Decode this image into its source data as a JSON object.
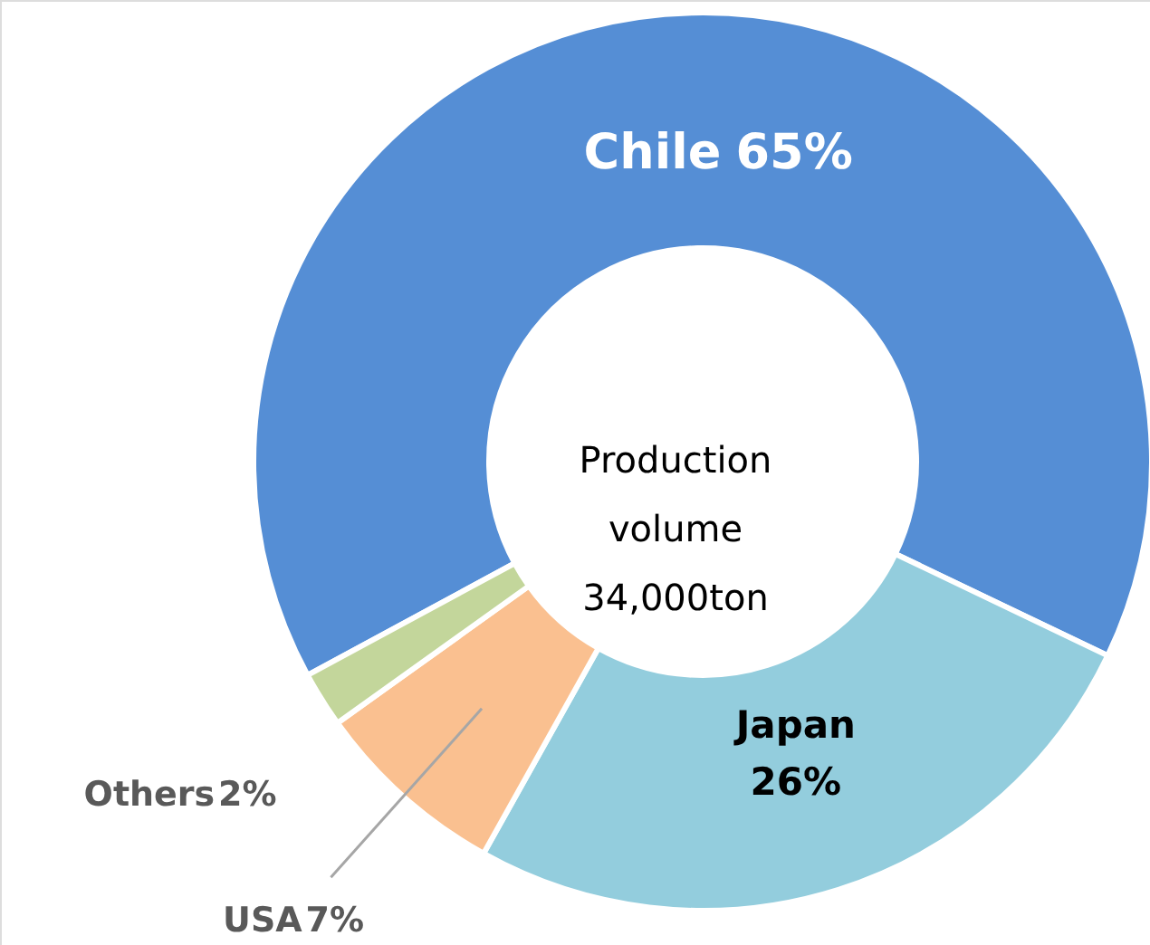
{
  "chart_data": {
    "type": "donut",
    "categories": [
      "Chile",
      "Japan",
      "USA",
      "Others"
    ],
    "values": [
      65,
      26,
      7,
      2
    ],
    "colors": [
      "#558ed5",
      "#93cddd",
      "#fac090",
      "#c3d69b"
    ],
    "value_labels": [
      "65%",
      "26%",
      "7%",
      "2%"
    ],
    "annotations": [
      "Production\nvolume\n34,000ton"
    ]
  }
}
